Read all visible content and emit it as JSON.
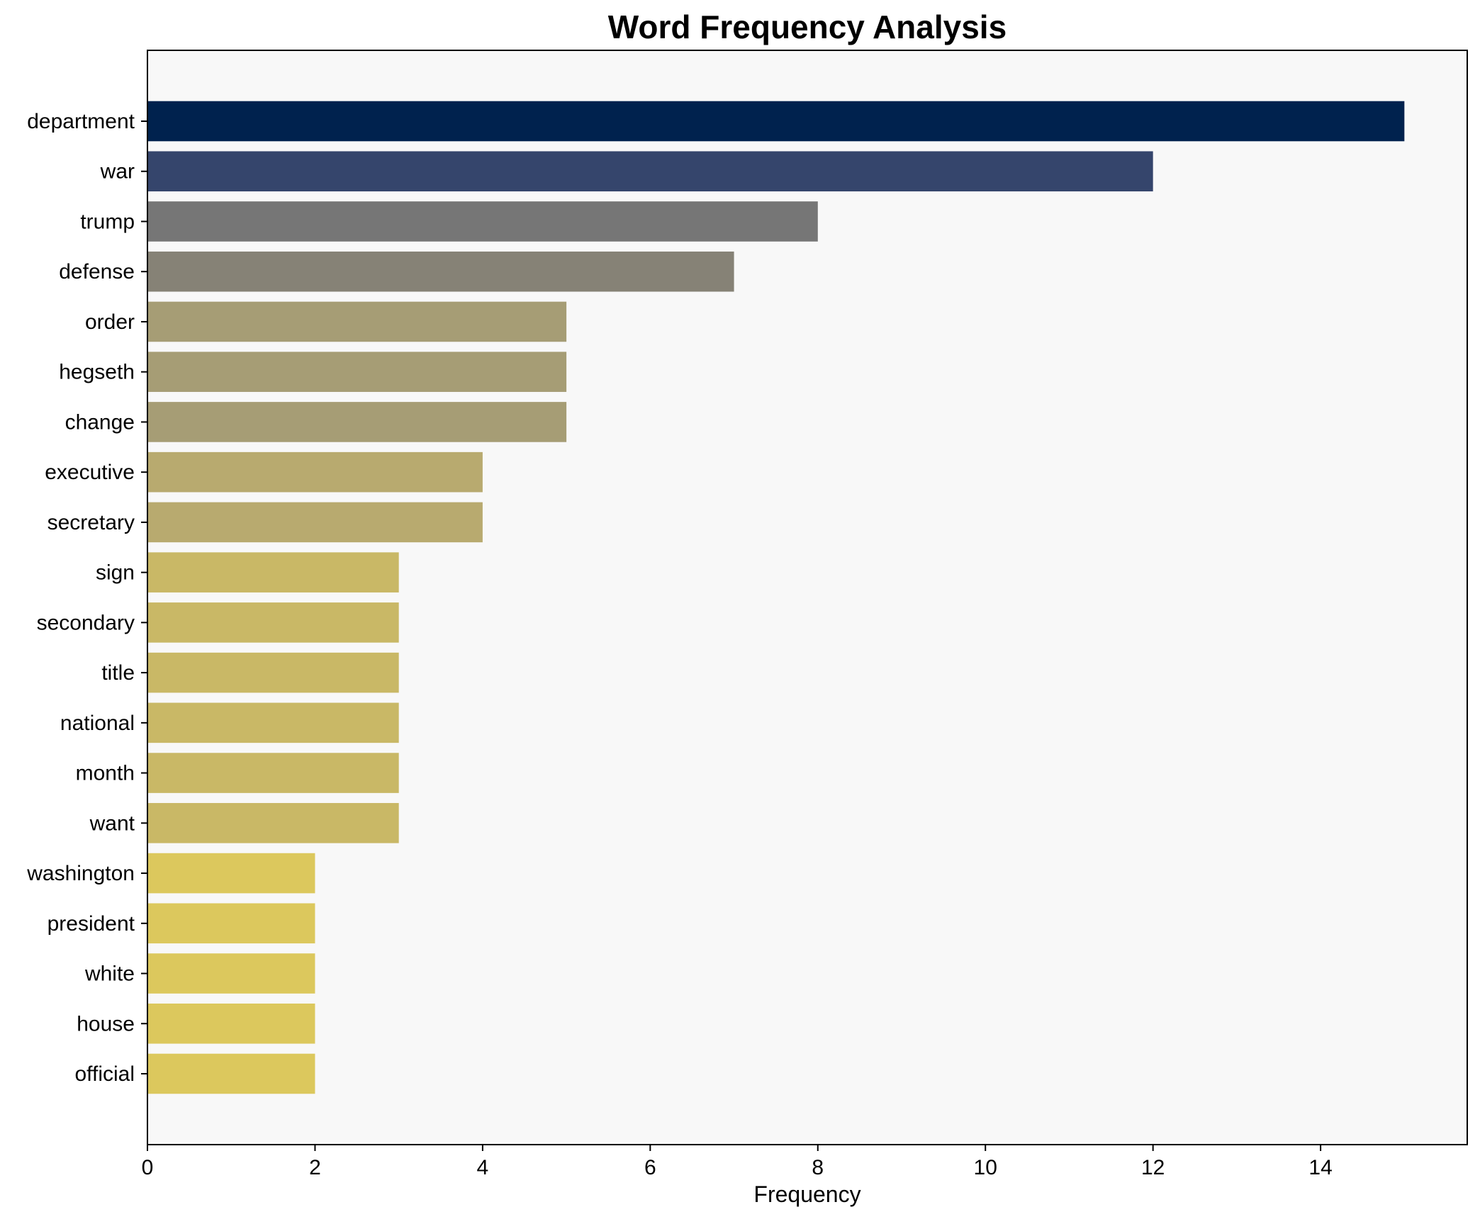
{
  "chart_data": {
    "type": "bar",
    "orientation": "horizontal",
    "title": "Word Frequency Analysis",
    "xlabel": "Frequency",
    "ylabel": "",
    "xlim": [
      0,
      15.75
    ],
    "xticks": [
      0,
      2,
      4,
      6,
      8,
      10,
      12,
      14
    ],
    "grid": false,
    "background": "#f8f8f8",
    "categories": [
      "department",
      "war",
      "trump",
      "defense",
      "order",
      "hegseth",
      "change",
      "executive",
      "secretary",
      "sign",
      "secondary",
      "title",
      "national",
      "month",
      "want",
      "washington",
      "president",
      "white",
      "house",
      "official"
    ],
    "values": [
      15,
      12,
      8,
      7,
      5,
      5,
      5,
      4,
      4,
      3,
      3,
      3,
      3,
      3,
      3,
      2,
      2,
      2,
      2,
      2
    ],
    "colors": [
      "#00224e",
      "#35456c",
      "#767676",
      "#868276",
      "#a69d75",
      "#a69d75",
      "#a69d75",
      "#b8aa6f",
      "#b8aa6f",
      "#c9b866",
      "#c9b866",
      "#c9b866",
      "#c9b866",
      "#c9b866",
      "#c9b866",
      "#dcc85d",
      "#dcc85d",
      "#dcc85d",
      "#dcc85d",
      "#dcc85d"
    ]
  }
}
